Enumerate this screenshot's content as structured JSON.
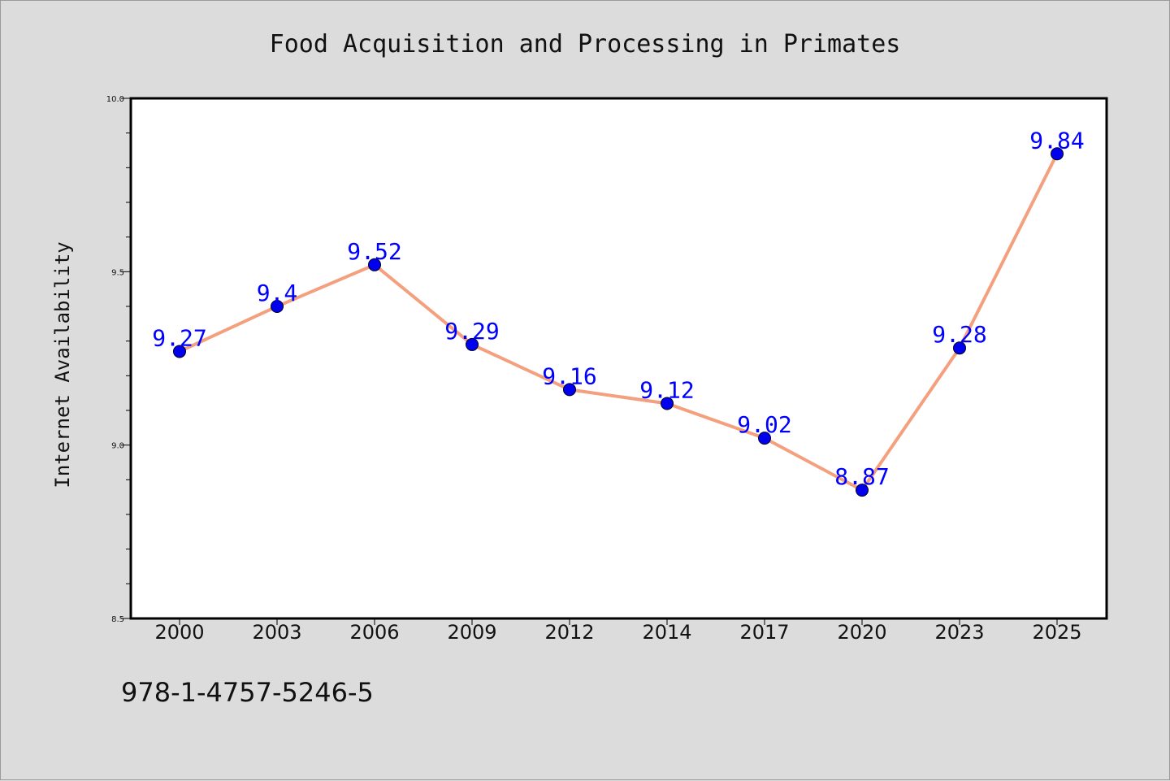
{
  "chart_data": {
    "type": "line",
    "title": "Food Acquisition and Processing in Primates",
    "xlabel": "",
    "ylabel": "Internet Availability",
    "categories": [
      "2000",
      "2003",
      "2006",
      "2009",
      "2012",
      "2014",
      "2017",
      "2020",
      "2023",
      "2025"
    ],
    "series": [
      {
        "values": [
          9.27,
          9.4,
          9.52,
          9.29,
          9.16,
          9.12,
          9.02,
          8.87,
          9.28,
          9.84
        ],
        "labels": [
          "9.27",
          "9.4",
          "9.52",
          "9.29",
          "9.16",
          "9.12",
          "9.02",
          "8.87",
          "9.28",
          "9.84"
        ],
        "line_color": "#f4a07f",
        "marker_color": "#0000ee"
      }
    ],
    "ylim": [
      8.5,
      10.0
    ],
    "yticks": [
      "8.5",
      "9.0",
      "9.5",
      "10.0"
    ],
    "grid": false,
    "legend": "none"
  },
  "footer": {
    "isbn": "978-1-4757-5246-5"
  }
}
